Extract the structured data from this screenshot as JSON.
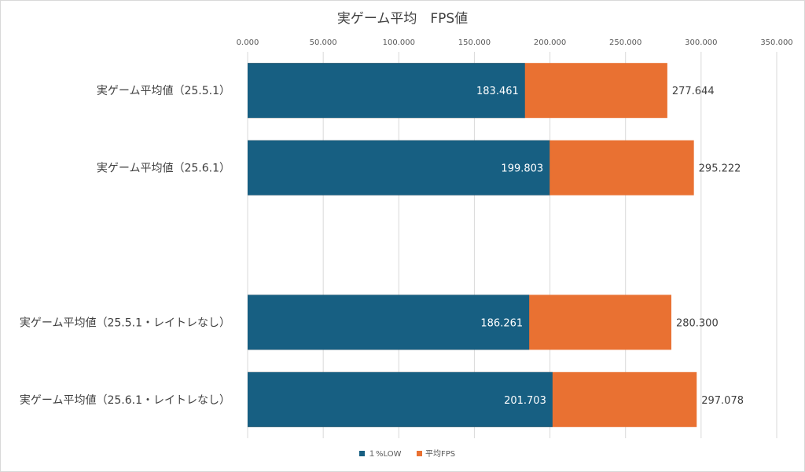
{
  "chart_data": {
    "type": "bar",
    "orientation": "horizontal",
    "stacked": false,
    "title": "実ゲーム平均　FPS値",
    "categories": [
      "実ゲーム平均値（25.5.1）",
      "実ゲーム平均値（25.6.1）",
      "",
      "実ゲーム平均値（25.5.1・レイトレなし）",
      "実ゲーム平均値（25.6.1・レイトレなし）"
    ],
    "series": [
      {
        "name": "１%LOW",
        "color": "#175f82",
        "values": [
          183.461,
          199.803,
          null,
          186.261,
          201.703
        ],
        "labels": [
          "183.461",
          "199.803",
          "",
          "186.261",
          "201.703"
        ]
      },
      {
        "name": "平均FPS",
        "color": "#e97132",
        "values": [
          277.644,
          295.222,
          null,
          280.3,
          297.078
        ],
        "labels": [
          "277.644",
          "295.222",
          "",
          "280.300",
          "297.078"
        ]
      }
    ],
    "xlim": [
      0,
      350
    ],
    "xticks": [
      0,
      50,
      100,
      150,
      200,
      250,
      300,
      350
    ],
    "xtick_labels": [
      "0.000",
      "50.000",
      "100.000",
      "150.000",
      "200.000",
      "250.000",
      "300.000",
      "350.000"
    ],
    "axis_position": "top",
    "grid": true,
    "legend": "bottom",
    "gridline_color": "#d9d9d9"
  }
}
